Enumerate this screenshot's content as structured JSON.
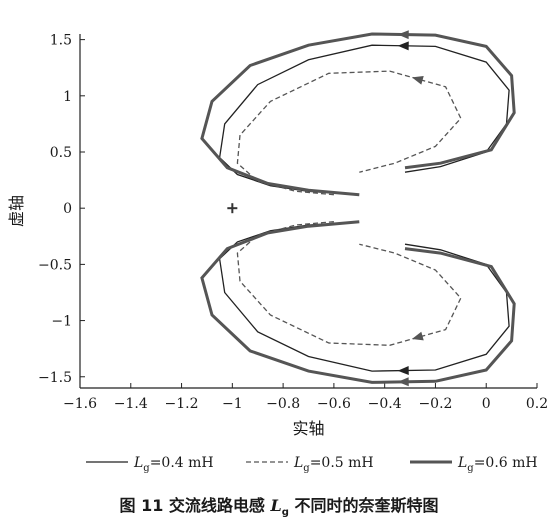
{
  "chart_data": {
    "type": "line",
    "xlabel": "实轴",
    "ylabel": "虚轴",
    "xlim": [
      -1.6,
      0.2
    ],
    "ylim": [
      -1.6,
      1.55
    ],
    "xticks": [
      "−1.6",
      "−1.4",
      "−1.2",
      "−1",
      "−0.8",
      "−0.6",
      "−0.4",
      "−0.2",
      "0",
      "0.2"
    ],
    "xtick_values": [
      -1.6,
      -1.4,
      -1.2,
      -1.0,
      -0.8,
      -0.6,
      -0.4,
      -0.2,
      0,
      0.2
    ],
    "yticks": [
      "1.5",
      "1",
      "0.5",
      "0",
      "−0.5",
      "−1",
      "−1.5"
    ],
    "ytick_values": [
      1.5,
      1.0,
      0.5,
      0,
      -0.5,
      -1.0,
      -1.5
    ],
    "critical_point": {
      "x": -1,
      "y": 0,
      "marker": "+"
    },
    "series": [
      {
        "name_var": "L",
        "name_sub": "g",
        "name_val": "=0.4  mH",
        "style": "solid",
        "points": [
          [
            -0.55,
            0.13
          ],
          [
            -0.7,
            0.15
          ],
          [
            -0.85,
            0.2
          ],
          [
            -0.98,
            0.3
          ],
          [
            -1.05,
            0.45
          ],
          [
            -1.03,
            0.75
          ],
          [
            -0.9,
            1.1
          ],
          [
            -0.7,
            1.32
          ],
          [
            -0.45,
            1.45
          ],
          [
            -0.2,
            1.44
          ],
          [
            0.0,
            1.3
          ],
          [
            0.09,
            1.05
          ],
          [
            0.08,
            0.75
          ],
          [
            0.0,
            0.5
          ],
          [
            -0.18,
            0.37
          ],
          [
            -0.32,
            0.32
          ]
        ]
      },
      {
        "name_var": "L",
        "name_sub": "g",
        "name_val": "=0.5  mH",
        "style": "dashed",
        "points": [
          [
            -0.6,
            0.12
          ],
          [
            -0.75,
            0.15
          ],
          [
            -0.9,
            0.24
          ],
          [
            -0.98,
            0.4
          ],
          [
            -0.97,
            0.65
          ],
          [
            -0.85,
            0.95
          ],
          [
            -0.62,
            1.2
          ],
          [
            -0.38,
            1.22
          ],
          [
            -0.16,
            1.08
          ],
          [
            -0.1,
            0.8
          ],
          [
            -0.2,
            0.55
          ],
          [
            -0.36,
            0.4
          ],
          [
            -0.5,
            0.32
          ]
        ]
      },
      {
        "name_var": "L",
        "name_sub": "g",
        "name_val": "=0.6  mH",
        "style": "thick",
        "points": [
          [
            -0.5,
            0.12
          ],
          [
            -0.7,
            0.16
          ],
          [
            -0.86,
            0.22
          ],
          [
            -1.02,
            0.36
          ],
          [
            -1.12,
            0.62
          ],
          [
            -1.08,
            0.95
          ],
          [
            -0.93,
            1.27
          ],
          [
            -0.7,
            1.45
          ],
          [
            -0.45,
            1.55
          ],
          [
            -0.2,
            1.54
          ],
          [
            0.0,
            1.44
          ],
          [
            0.1,
            1.18
          ],
          [
            0.11,
            0.85
          ],
          [
            0.02,
            0.52
          ],
          [
            -0.18,
            0.4
          ],
          [
            -0.32,
            0.36
          ]
        ]
      }
    ],
    "legend_position": "bottom"
  },
  "caption": {
    "prefix": "图 11  交流线路电感 ",
    "var": "L",
    "sub": "g",
    "suffix": " 不同时的奈奎斯特图"
  }
}
